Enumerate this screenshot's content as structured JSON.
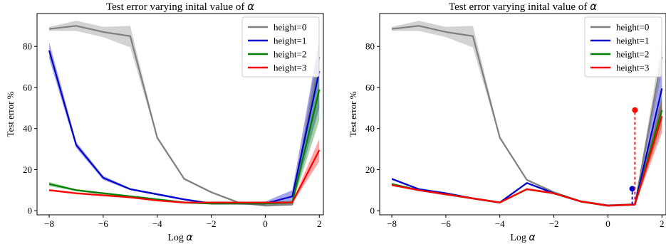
{
  "chart_data": [
    {
      "type": "line",
      "title": "Test error varying inital value of α",
      "title_text": "Test error varying inital value of",
      "title_symbol": "α",
      "xlabel": "Log α",
      "xlabel_text": "Log",
      "xlabel_symbol": "α",
      "ylabel": "Test error %",
      "xlim": [
        -8.45,
        2.15
      ],
      "ylim": [
        -2,
        96
      ],
      "x_ticks": [
        -8,
        -6,
        -4,
        -2,
        0,
        2
      ],
      "x_tick_labels": [
        "−8",
        "−6",
        "−4",
        "−2",
        "0",
        "2"
      ],
      "y_ticks": [
        0,
        20,
        40,
        60,
        80
      ],
      "y_tick_labels": [
        "0",
        "20",
        "40",
        "60",
        "80"
      ],
      "grid": false,
      "legend_position": "top-right",
      "series": [
        {
          "name": "height=0",
          "color": "#808080",
          "x": [
            -8,
            -7,
            -6,
            -5,
            -4,
            -3,
            -2,
            -1,
            0,
            1,
            2
          ],
          "y": [
            88.5,
            90,
            87,
            85,
            35.5,
            15.5,
            9,
            4,
            2.5,
            3,
            75
          ],
          "lower": [
            87.5,
            87.5,
            84.5,
            79.5,
            35,
            15,
            8.5,
            3.5,
            2,
            2.5,
            68
          ],
          "upper": [
            89.5,
            92.5,
            89.5,
            90,
            36.5,
            16,
            9.5,
            4.5,
            3,
            3.5,
            83
          ]
        },
        {
          "name": "height=1",
          "color": "#0000cc",
          "x": [
            -8,
            -7.5,
            -7,
            -6,
            -5,
            -4,
            -3,
            -2,
            -1,
            0,
            1,
            2
          ],
          "y": [
            78,
            55,
            32,
            16,
            10.5,
            8,
            5.5,
            3.5,
            3.5,
            3.5,
            7,
            68
          ],
          "lower": [
            74,
            52,
            30.5,
            15,
            10,
            7.5,
            5,
            3,
            3,
            2.5,
            3.5,
            50
          ],
          "upper": [
            82,
            58,
            33.5,
            17,
            11,
            8.5,
            6,
            4,
            4,
            4.5,
            10,
            84
          ]
        },
        {
          "name": "height=2",
          "color": "#008000",
          "x": [
            -8,
            -7,
            -6,
            -5,
            -4,
            -3,
            -2,
            -1,
            0,
            1,
            2
          ],
          "y": [
            13,
            10,
            8.5,
            7,
            5.5,
            4,
            3.5,
            3.5,
            3.5,
            4,
            59
          ],
          "lower": [
            12,
            9.5,
            8,
            6.5,
            5,
            3.5,
            3,
            3,
            3,
            3,
            44
          ],
          "upper": [
            14,
            10.5,
            9,
            7.5,
            6,
            4.5,
            4,
            4,
            4,
            5,
            72
          ]
        },
        {
          "name": "height=3",
          "color": "#ff0000",
          "x": [
            -8,
            -7,
            -6,
            -5,
            -4,
            -3,
            -2,
            -1,
            0,
            1,
            2
          ],
          "y": [
            10,
            8.5,
            7.5,
            6.5,
            5,
            4,
            4,
            4,
            4,
            4,
            29.5
          ],
          "lower": [
            9.5,
            8,
            7,
            6,
            4.5,
            3.5,
            3.5,
            3.5,
            3.5,
            3.5,
            24
          ],
          "upper": [
            10.5,
            9,
            8,
            7,
            5.5,
            4.5,
            4.5,
            4.5,
            4.5,
            4.5,
            35
          ]
        }
      ],
      "markers": []
    },
    {
      "type": "line",
      "title": "Test error varying inital value of α",
      "title_text": "Test error varying inital value of",
      "title_symbol": "α",
      "xlabel": "Log α",
      "xlabel_text": "Log",
      "xlabel_symbol": "α",
      "ylabel": "Test error %",
      "xlim": [
        -8.45,
        2.15
      ],
      "ylim": [
        -2,
        96
      ],
      "x_ticks": [
        -8,
        -6,
        -4,
        -2,
        0,
        2
      ],
      "x_tick_labels": [
        "−8",
        "−6",
        "−4",
        "−2",
        "0",
        "2"
      ],
      "y_ticks": [
        0,
        20,
        40,
        60,
        80
      ],
      "y_tick_labels": [
        "0",
        "20",
        "40",
        "60",
        "80"
      ],
      "grid": false,
      "legend_position": "top-right",
      "series": [
        {
          "name": "height=0",
          "color": "#808080",
          "x": [
            -8,
            -7,
            -6,
            -5,
            -4,
            -3,
            -2,
            -1,
            0,
            1,
            2
          ],
          "y": [
            88.5,
            90,
            87,
            85,
            35.5,
            15,
            9,
            4.5,
            2.5,
            3,
            75
          ],
          "lower": [
            87.5,
            87.5,
            84.5,
            79.5,
            35,
            14.5,
            8.5,
            4,
            2,
            2.5,
            68
          ],
          "upper": [
            89.5,
            92.5,
            89.5,
            90,
            36.5,
            15.5,
            9.5,
            5,
            3,
            3.5,
            83
          ]
        },
        {
          "name": "height=1",
          "color": "#0000cc",
          "x": [
            -8,
            -7,
            -6,
            -5,
            -4,
            -3,
            -2,
            -1,
            0,
            1,
            2
          ],
          "y": [
            15.5,
            10.5,
            8.5,
            6,
            4,
            13.5,
            8.5,
            4.5,
            2.5,
            3,
            59.5
          ],
          "lower": [
            15,
            10,
            8,
            5.5,
            3.5,
            13,
            8,
            4,
            2,
            2.5,
            48
          ],
          "upper": [
            16,
            11,
            9,
            6.5,
            4.5,
            14,
            9,
            5,
            3,
            3.5,
            72
          ]
        },
        {
          "name": "height=2",
          "color": "#008000",
          "x": [
            -8,
            -7,
            -6,
            -5,
            -4,
            -3,
            -2,
            -1,
            0,
            1,
            2
          ],
          "y": [
            13,
            10,
            8,
            6,
            4,
            10.5,
            8.5,
            4.5,
            2.5,
            3,
            49
          ],
          "lower": [
            12.5,
            9.5,
            7.5,
            5.5,
            3.5,
            10,
            8,
            4,
            2,
            2.5,
            41
          ],
          "upper": [
            13.5,
            10.5,
            8.5,
            6.5,
            4.5,
            11,
            9,
            5,
            3,
            3.5,
            56
          ]
        },
        {
          "name": "height=3",
          "color": "#ff0000",
          "x": [
            -8,
            -7,
            -6,
            -5,
            -4,
            -3,
            -2,
            -1,
            0,
            1,
            2
          ],
          "y": [
            12.5,
            10,
            8,
            6,
            4,
            10.5,
            8.5,
            4.5,
            2.5,
            3,
            46
          ],
          "lower": [
            12,
            9.5,
            7.5,
            5.5,
            3.5,
            10,
            8,
            4,
            2,
            2.5,
            38
          ],
          "upper": [
            13,
            10.5,
            8.5,
            6.5,
            4.5,
            11,
            9,
            5,
            3,
            3.5,
            54
          ]
        }
      ],
      "markers": [
        {
          "series": "height=1",
          "color": "#0000cc",
          "x": 0.9,
          "y": 10.7,
          "base": 3
        },
        {
          "series": "height=3",
          "color": "#ff0000",
          "x": 1.0,
          "y": 49,
          "base": 3
        }
      ]
    }
  ]
}
